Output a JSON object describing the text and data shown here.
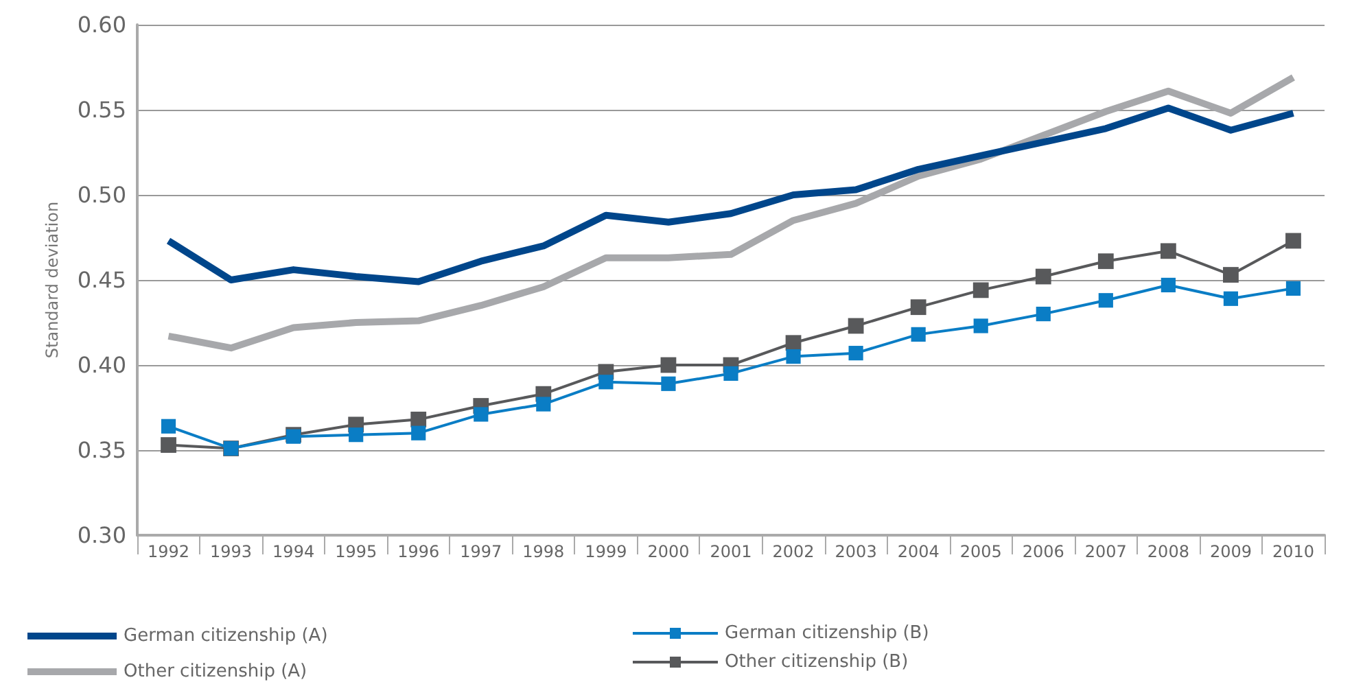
{
  "chart_data": {
    "type": "line",
    "ylabel": "Standard deviation",
    "categories": [
      "1992",
      "1993",
      "1994",
      "1995",
      "1996",
      "1997",
      "1998",
      "1999",
      "2000",
      "2001",
      "2002",
      "2003",
      "2004",
      "2005",
      "2006",
      "2007",
      "2008",
      "2009",
      "2010"
    ],
    "series": [
      {
        "name": "German citizenship (A)",
        "color": "#00468b",
        "marker": "none",
        "values": [
          0.473,
          0.45,
          0.456,
          0.452,
          0.449,
          0.461,
          0.47,
          0.488,
          0.484,
          0.489,
          0.5,
          0.503,
          0.515,
          0.523,
          0.531,
          0.539,
          0.551,
          0.538,
          0.548
        ]
      },
      {
        "name": "Other citizenship (A)",
        "color": "#a7a8ab",
        "marker": "none",
        "values": [
          0.417,
          0.41,
          0.422,
          0.425,
          0.426,
          0.435,
          0.446,
          0.463,
          0.463,
          0.465,
          0.485,
          0.495,
          0.511,
          0.521,
          0.535,
          0.549,
          0.561,
          0.548,
          0.569
        ]
      },
      {
        "name": "German citizenship (B)",
        "color": "#0a7dc5",
        "marker": "square",
        "values": [
          0.364,
          0.351,
          0.358,
          0.359,
          0.36,
          0.371,
          0.377,
          0.39,
          0.389,
          0.395,
          0.405,
          0.407,
          0.418,
          0.423,
          0.43,
          0.438,
          0.447,
          0.439,
          0.445
        ]
      },
      {
        "name": "Other citizenship (B)",
        "color": "#58595b",
        "marker": "square",
        "values": [
          0.353,
          0.351,
          0.359,
          0.365,
          0.368,
          0.376,
          0.383,
          0.396,
          0.4,
          0.4,
          0.413,
          0.423,
          0.434,
          0.444,
          0.452,
          0.461,
          0.467,
          0.453,
          0.473
        ]
      }
    ],
    "ylim": [
      0.3,
      0.6
    ],
    "yticks": [
      {
        "value": 0.3,
        "label": "0.30"
      },
      {
        "value": 0.35,
        "label": "0.35"
      },
      {
        "value": 0.4,
        "label": "0.40"
      },
      {
        "value": 0.45,
        "label": "0.45"
      },
      {
        "value": 0.5,
        "label": "0.50"
      },
      {
        "value": 0.55,
        "label": "0.55"
      },
      {
        "value": 0.6,
        "label": "0.60"
      }
    ],
    "grid": "y",
    "legend": "bottom"
  }
}
